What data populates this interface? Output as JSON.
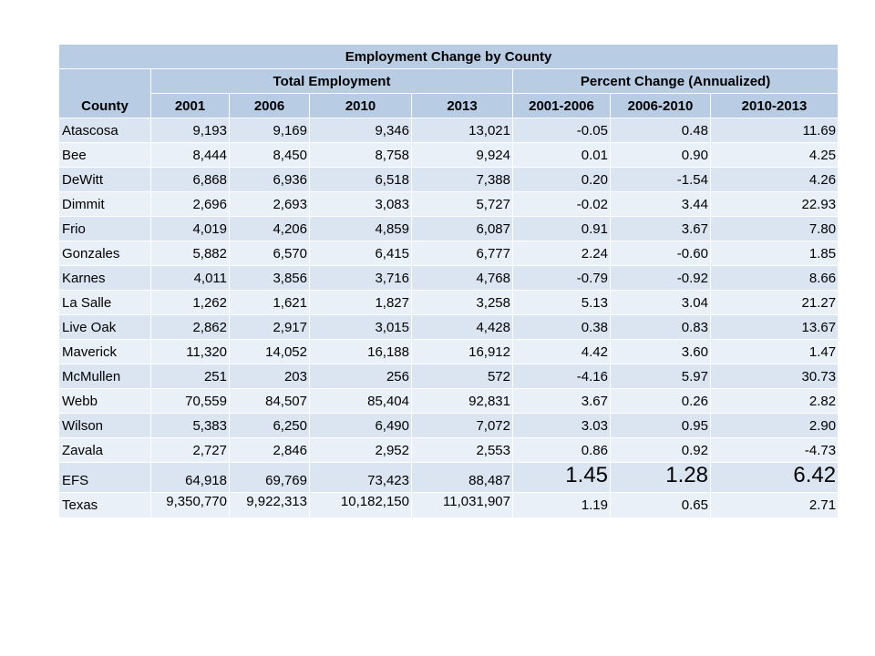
{
  "title": "Employment Change by County",
  "headers": {
    "county": "County",
    "total_employment": "Total Employment",
    "percent_change": "Percent Change (Annualized)",
    "years": [
      "2001",
      "2006",
      "2010",
      "2013"
    ],
    "periods": [
      "2001-2006",
      "2006-2010",
      "2010-2013"
    ]
  },
  "rows": [
    {
      "name": "Atascosa",
      "values": [
        "9,193",
        "9,169",
        "9,346",
        "13,021",
        "-0.05",
        "0.48",
        "11.69"
      ]
    },
    {
      "name": "Bee",
      "values": [
        "8,444",
        "8,450",
        "8,758",
        "9,924",
        "0.01",
        "0.90",
        "4.25"
      ]
    },
    {
      "name": "DeWitt",
      "values": [
        "6,868",
        "6,936",
        "6,518",
        "7,388",
        "0.20",
        "-1.54",
        "4.26"
      ]
    },
    {
      "name": "Dimmit",
      "values": [
        "2,696",
        "2,693",
        "3,083",
        "5,727",
        "-0.02",
        "3.44",
        "22.93"
      ]
    },
    {
      "name": "Frio",
      "values": [
        "4,019",
        "4,206",
        "4,859",
        "6,087",
        "0.91",
        "3.67",
        "7.80"
      ]
    },
    {
      "name": "Gonzales",
      "values": [
        "5,882",
        "6,570",
        "6,415",
        "6,777",
        "2.24",
        "-0.60",
        "1.85"
      ]
    },
    {
      "name": "Karnes",
      "values": [
        "4,011",
        "3,856",
        "3,716",
        "4,768",
        "-0.79",
        "-0.92",
        "8.66"
      ]
    },
    {
      "name": "La Salle",
      "values": [
        "1,262",
        "1,621",
        "1,827",
        "3,258",
        "5.13",
        "3.04",
        "21.27"
      ]
    },
    {
      "name": "Live Oak",
      "values": [
        "2,862",
        "2,917",
        "3,015",
        "4,428",
        "0.38",
        "0.83",
        "13.67"
      ]
    },
    {
      "name": "Maverick",
      "values": [
        "11,320",
        "14,052",
        "16,188",
        "16,912",
        "4.42",
        "3.60",
        "1.47"
      ]
    },
    {
      "name": "McMullen",
      "values": [
        "251",
        "203",
        "256",
        "572",
        "-4.16",
        "5.97",
        "30.73"
      ]
    },
    {
      "name": "Webb",
      "values": [
        "70,559",
        "84,507",
        "85,404",
        "92,831",
        "3.67",
        "0.26",
        "2.82"
      ]
    },
    {
      "name": "Wilson",
      "values": [
        "5,383",
        "6,250",
        "6,490",
        "7,072",
        "3.03",
        "0.95",
        "2.90"
      ]
    },
    {
      "name": "Zavala",
      "values": [
        "2,727",
        "2,846",
        "2,952",
        "2,553",
        "0.86",
        "0.92",
        "-4.73"
      ]
    }
  ],
  "efs": {
    "name": "EFS",
    "values": [
      "64,918",
      "69,769",
      "73,423",
      "88,487",
      "1.45",
      "1.28",
      "6.42"
    ]
  },
  "texas": {
    "name": "Texas",
    "values": [
      "9,350,770",
      "9,922,313",
      "10,182,150",
      "11,031,907",
      "1.19",
      "0.65",
      "2.71"
    ]
  }
}
